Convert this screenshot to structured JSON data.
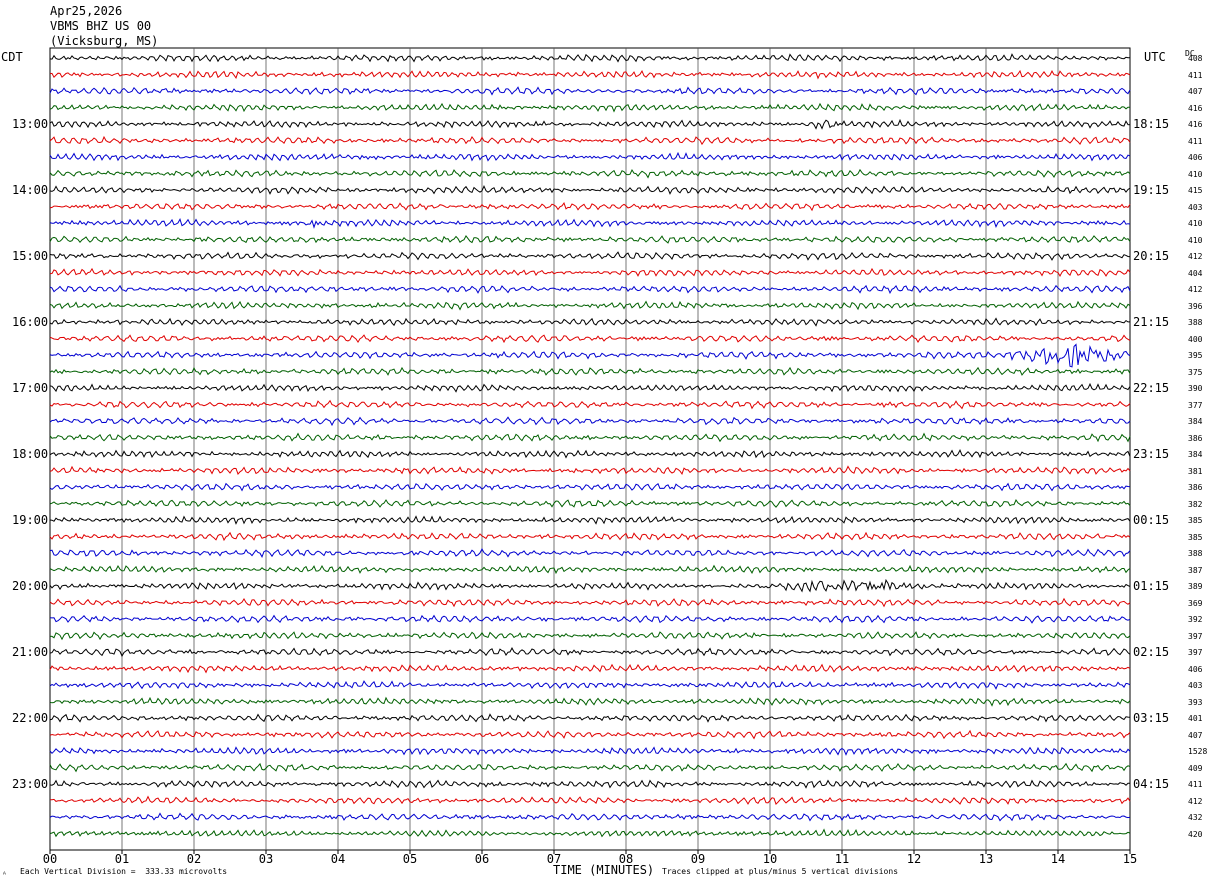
{
  "header": {
    "date": "Apr25,2026",
    "station": "VBMS BHZ US 00",
    "location": "(Vicksburg, MS)"
  },
  "left_tz": "CDT",
  "right_tz": "UTC",
  "dc_label": "DC",
  "footer": {
    "scale_note": "Each Vertical Division =  333.33 microvolts",
    "xlabel": "TIME (MINUTES)",
    "clip_note": "Traces clipped at plus/minus 5 vertical divisions",
    "corner_mark": "ᴬ"
  },
  "chart_data": {
    "type": "line",
    "xlabel": "TIME (MINUTES)",
    "xlim": [
      0,
      15
    ],
    "x_ticks": [
      "00",
      "01",
      "02",
      "03",
      "04",
      "05",
      "06",
      "07",
      "08",
      "09",
      "10",
      "11",
      "12",
      "13",
      "14",
      "15"
    ],
    "trace_colors": [
      "#000000",
      "#e00000",
      "#0000d0",
      "#006000"
    ],
    "rows": 48,
    "left_hour_labels": [
      "13:00",
      "14:00",
      "15:00",
      "16:00",
      "17:00",
      "18:00",
      "19:00",
      "20:00",
      "21:00",
      "22:00",
      "23:00"
    ],
    "right_hour_labels": [
      "18:15",
      "19:15",
      "20:15",
      "21:15",
      "22:15",
      "23:15",
      "00:15",
      "01:15",
      "02:15",
      "03:15",
      "04:15"
    ],
    "dc_offsets": [
      "408",
      "411",
      "407",
      "416",
      "416",
      "411",
      "406",
      "410",
      "415",
      "403",
      "410",
      "410",
      "412",
      "404",
      "412",
      "396",
      "388",
      "400",
      "395",
      "375",
      "390",
      "377",
      "384",
      "386",
      "384",
      "381",
      "386",
      "382",
      "385",
      "385",
      "388",
      "387",
      "389",
      "369",
      "392",
      "397",
      "397",
      "406",
      "403",
      "393",
      "401",
      "407",
      "1528",
      "409",
      "411",
      "412",
      "432",
      "420"
    ],
    "events": [
      {
        "row": 18,
        "start_min": 13.3,
        "end_min": 15.0,
        "amplitude": "large"
      },
      {
        "row": 32,
        "start_min": 9.8,
        "end_min": 12.8,
        "amplitude": "moderate"
      },
      {
        "row": 10,
        "start_min": 3.5,
        "end_min": 3.9,
        "amplitude": "small"
      },
      {
        "row": 4,
        "start_min": 10.5,
        "end_min": 11.0,
        "amplitude": "small"
      }
    ]
  }
}
